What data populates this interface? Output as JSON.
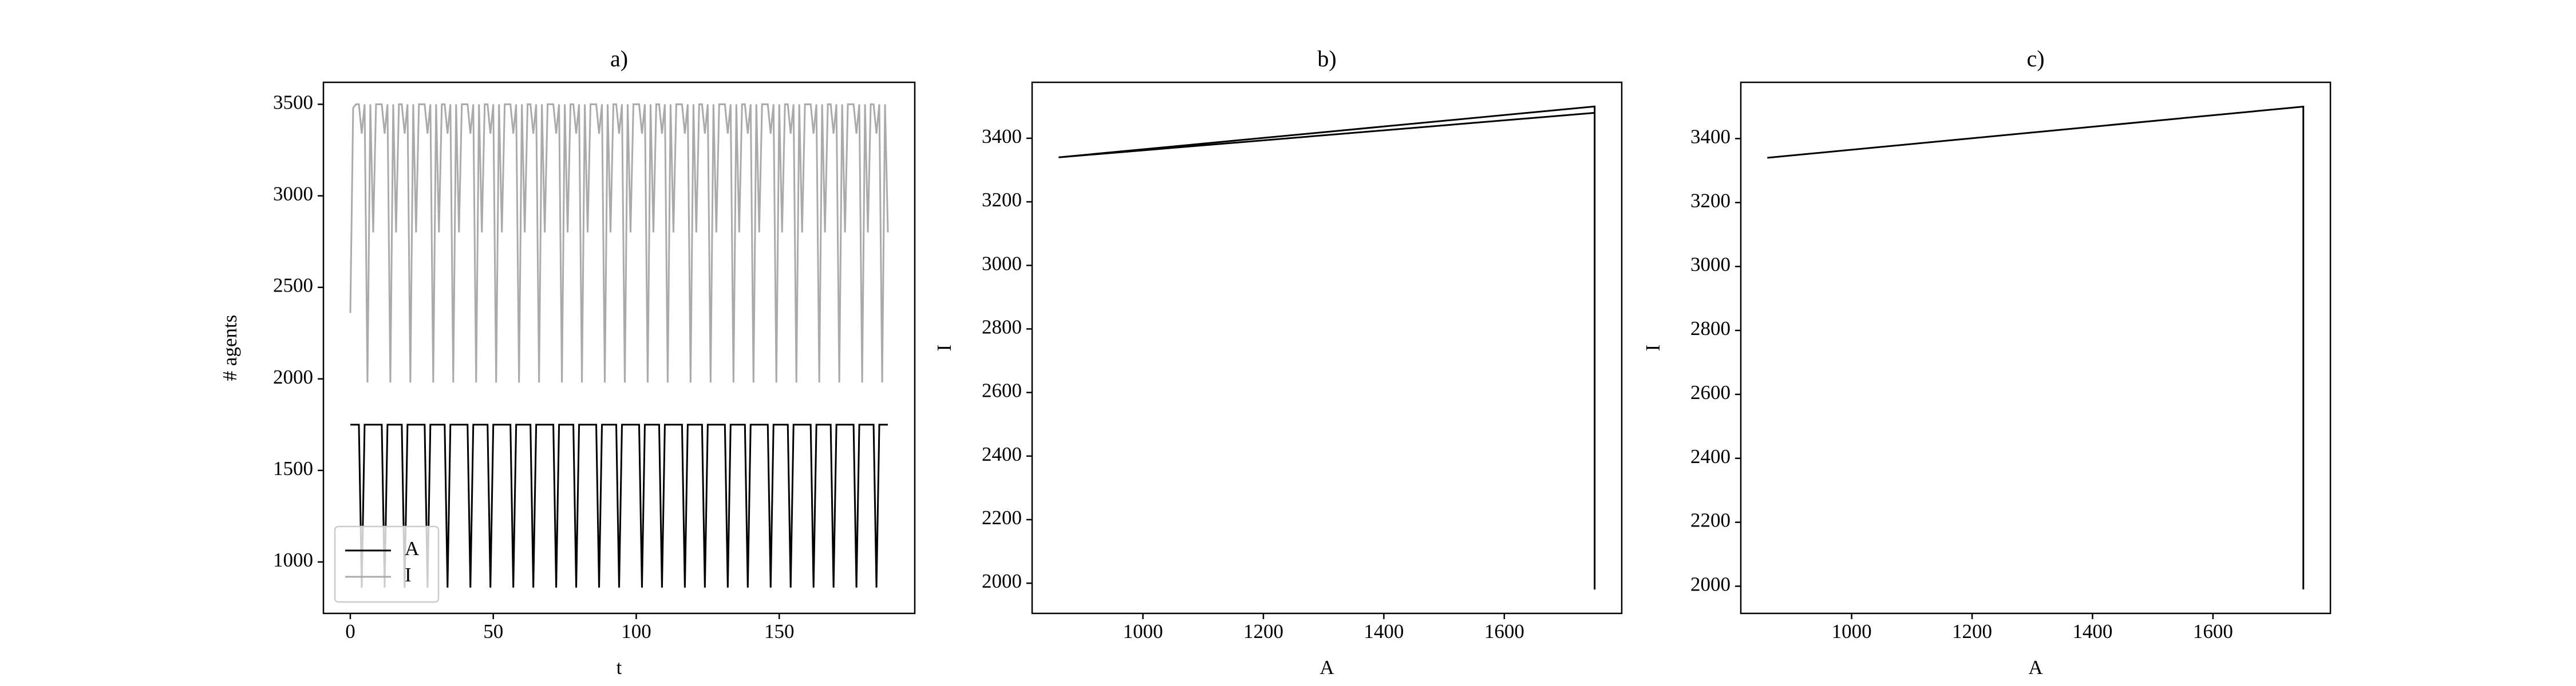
{
  "chart_data": [
    {
      "type": "line",
      "title": "a)",
      "xlabel": "t",
      "ylabel": "# agents",
      "x": [
        0,
        1,
        2,
        3,
        4,
        5,
        6,
        7,
        8,
        9,
        10,
        11,
        12,
        13,
        14,
        15,
        16,
        17,
        18,
        19,
        20,
        21,
        22,
        23,
        24,
        25,
        26,
        27,
        28,
        29,
        30,
        31,
        32,
        33,
        34,
        35,
        36,
        37,
        38,
        39,
        40,
        41,
        42,
        43,
        44,
        45,
        46,
        47,
        48,
        49,
        50,
        51,
        52,
        53,
        54,
        55,
        56,
        57,
        58,
        59,
        60,
        61,
        62,
        63,
        64,
        65,
        66,
        67,
        68,
        69,
        70,
        71,
        72,
        73,
        74,
        75,
        76,
        77,
        78,
        79,
        80,
        81,
        82,
        83,
        84,
        85,
        86,
        87,
        88,
        89,
        90,
        91,
        92,
        93,
        94,
        95,
        96,
        97,
        98,
        99,
        100,
        101,
        102,
        103,
        104,
        105,
        106,
        107,
        108,
        109,
        110,
        111,
        112,
        113,
        114,
        115,
        116,
        117,
        118,
        119,
        120,
        121,
        122,
        123,
        124,
        125,
        126,
        127,
        128,
        129,
        130,
        131,
        132,
        133,
        134,
        135,
        136,
        137,
        138,
        139,
        140,
        141,
        142,
        143,
        144,
        145,
        146,
        147,
        148,
        149,
        150,
        151,
        152,
        153,
        154,
        155,
        156,
        157,
        158,
        159,
        160,
        161,
        162,
        163,
        164,
        165,
        166,
        167,
        168,
        169,
        170,
        171,
        172,
        173,
        174,
        175,
        176,
        177,
        178,
        179,
        180,
        181,
        182,
        183,
        184,
        185,
        186,
        187,
        188
      ],
      "series": [
        {
          "name": "A",
          "color": "#000000",
          "values": [
            1750,
            1750,
            1750,
            1750,
            860,
            1750,
            1750,
            1750,
            1750,
            1750,
            1750,
            1750,
            860,
            1750,
            1750,
            1750,
            1750,
            1750,
            1750,
            860,
            1750,
            1750,
            1750,
            1750,
            1750,
            1750,
            1750,
            860,
            1750,
            1750,
            1750,
            1750,
            1750,
            1750,
            860,
            1750,
            1750,
            1750,
            1750,
            1750,
            1750,
            1750,
            860,
            1750,
            1750,
            1750,
            1750,
            1750,
            1750,
            860,
            1750,
            1750,
            1750,
            1750,
            1750,
            1750,
            1750,
            860,
            1750,
            1750,
            1750,
            1750,
            1750,
            1750,
            860,
            1750,
            1750,
            1750,
            1750,
            1750,
            1750,
            1750,
            860,
            1750,
            1750,
            1750,
            1750,
            1750,
            1750,
            860,
            1750,
            1750,
            1750,
            1750,
            1750,
            1750,
            1750,
            860,
            1750,
            1750,
            1750,
            1750,
            1750,
            1750,
            860,
            1750,
            1750,
            1750,
            1750,
            1750,
            1750,
            1750,
            860,
            1750,
            1750,
            1750,
            1750,
            1750,
            1750,
            860,
            1750,
            1750,
            1750,
            1750,
            1750,
            1750,
            1750,
            860,
            1750,
            1750,
            1750,
            1750,
            1750,
            1750,
            860,
            1750,
            1750,
            1750,
            1750,
            1750,
            1750,
            1750,
            860,
            1750,
            1750,
            1750,
            1750,
            1750,
            1750,
            860,
            1750,
            1750,
            1750,
            1750,
            1750,
            1750,
            1750,
            860,
            1750,
            1750,
            1750,
            1750,
            1750,
            1750,
            860,
            1750,
            1750,
            1750,
            1750,
            1750,
            1750,
            1750,
            860,
            1750,
            1750,
            1750,
            1750,
            1750,
            1750,
            860,
            1750,
            1750,
            1750,
            1750,
            1750,
            1750,
            1750,
            860,
            1750,
            1750,
            1750,
            1750,
            1750,
            1750,
            860,
            1750,
            1750,
            1750,
            1750
          ]
        },
        {
          "name": "I",
          "color": "#aaaaaa",
          "values": [
            2360,
            3480,
            3500,
            3500,
            3340,
            3500,
            1980,
            3500,
            2800,
            3500,
            3500,
            3500,
            3340,
            3500,
            1980,
            3500,
            2800,
            3500,
            3500,
            3340,
            3500,
            1980,
            3500,
            2800,
            3500,
            3500,
            3500,
            3340,
            3500,
            1980,
            3500,
            2800,
            3500,
            3500,
            3340,
            3500,
            1980,
            3500,
            2800,
            3500,
            3500,
            3500,
            3340,
            3500,
            1980,
            3500,
            2800,
            3500,
            3500,
            3340,
            3500,
            1980,
            3500,
            2800,
            3500,
            3500,
            3500,
            3340,
            3500,
            1980,
            3500,
            2800,
            3500,
            3500,
            3340,
            3500,
            1980,
            3500,
            2800,
            3500,
            3500,
            3500,
            3340,
            3500,
            1980,
            3500,
            2800,
            3500,
            3500,
            3340,
            3500,
            1980,
            3500,
            2800,
            3500,
            3500,
            3500,
            3340,
            3500,
            1980,
            3500,
            2800,
            3500,
            3500,
            3340,
            3500,
            1980,
            3500,
            2800,
            3500,
            3500,
            3500,
            3340,
            3500,
            1980,
            3500,
            2800,
            3500,
            3500,
            3340,
            3500,
            1980,
            3500,
            2800,
            3500,
            3500,
            3500,
            3340,
            3500,
            1980,
            3500,
            2800,
            3500,
            3500,
            3340,
            3500,
            1980,
            3500,
            2800,
            3500,
            3500,
            3500,
            3340,
            3500,
            1980,
            3500,
            2800,
            3500,
            3500,
            3340,
            3500,
            1980,
            3500,
            2800,
            3500,
            3500,
            3500,
            3340,
            3500,
            1980,
            3500,
            2800,
            3500,
            3500,
            3340,
            3500,
            1980,
            3500,
            2800,
            3500,
            3500,
            3500,
            3340,
            3500,
            1980,
            3500,
            2800,
            3500,
            3500,
            3340,
            3500,
            1980,
            3500,
            2800,
            3500,
            3500,
            3500,
            3340,
            3500,
            1980,
            3500,
            2800,
            3500,
            3500,
            3340,
            3500,
            1980,
            3500,
            2800
          ]
        }
      ],
      "xlim": [
        -9.4,
        197.4
      ],
      "ylim": [
        719,
        3620
      ],
      "xticks": [
        0,
        50,
        100,
        150
      ],
      "yticks": [
        1000,
        1500,
        2000,
        2500,
        3000,
        3500
      ],
      "legend": "lower left"
    },
    {
      "type": "line",
      "title": "b)",
      "xlabel": "A",
      "ylabel": "I",
      "x": [
        1750,
        860,
        1750,
        1750
      ],
      "series": [
        {
          "color": "#000000",
          "values": [
            3480,
            3340,
            3500,
            1980
          ]
        }
      ],
      "xlim": [
        816,
        1795
      ],
      "ylim": [
        1905,
        3576
      ],
      "xticks": [
        1000,
        1200,
        1400,
        1600
      ],
      "yticks": [
        2000,
        2200,
        2400,
        2600,
        2800,
        3000,
        3200,
        3400
      ]
    },
    {
      "type": "line",
      "title": "c)",
      "xlabel": "A",
      "ylabel": "I",
      "x": [
        860,
        1750,
        1750
      ],
      "series": [
        {
          "color": "#000000",
          "values": [
            3340,
            3500,
            1990
          ]
        }
      ],
      "xlim": [
        816,
        1795
      ],
      "ylim": [
        1915,
        3576
      ],
      "xticks": [
        1000,
        1200,
        1400,
        1600
      ],
      "yticks": [
        2000,
        2200,
        2400,
        2600,
        2800,
        3000,
        3200,
        3400
      ]
    }
  ]
}
